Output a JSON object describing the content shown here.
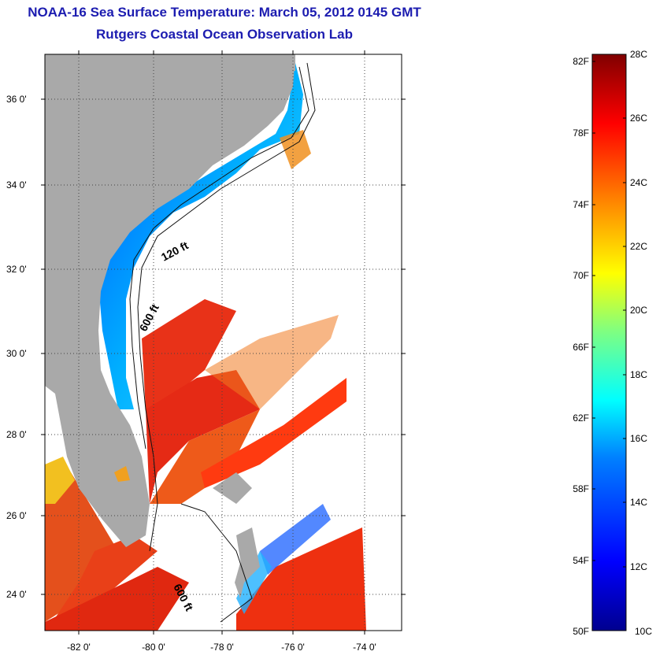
{
  "header": {
    "title": "NOAA-16 Sea Surface Temperature:  March 05, 2012 0145 GMT",
    "subtitle": "Rutgers Coastal Ocean Observation Lab"
  },
  "map": {
    "lat_labels": [
      "36 0'",
      "34 0'",
      "32 0'",
      "30 0'",
      "28 0'",
      "26 0'",
      "24 0'"
    ],
    "lon_labels": [
      "-82 0'",
      "-80 0'",
      "-78 0'",
      "-76 0'",
      "-74 0'"
    ],
    "contour_labels": [
      "120 ft",
      "600 ft",
      "600 ft"
    ],
    "land_color": "#a9a9a9",
    "no_data_color": "#ffffff"
  },
  "colorbar": {
    "fahrenheit_labels": [
      "82F",
      "78F",
      "74F",
      "70F",
      "66F",
      "62F",
      "58F",
      "54F",
      "50F"
    ],
    "celsius_labels": [
      "28C",
      "26C",
      "24C",
      "22C",
      "20C",
      "18C",
      "16C",
      "14C",
      "12C",
      "10C"
    ],
    "colormap": [
      "#00008f",
      "#0000ff",
      "#0080ff",
      "#00ffff",
      "#80ff80",
      "#ffff00",
      "#ff8000",
      "#ff0000",
      "#800000"
    ]
  }
}
